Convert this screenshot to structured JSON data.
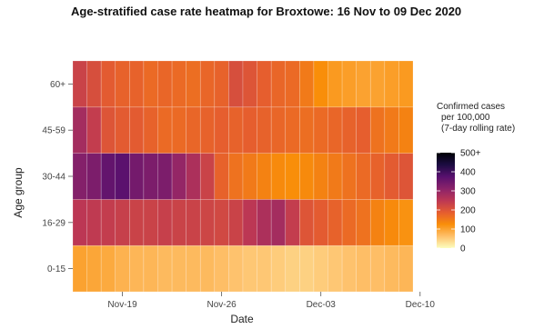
{
  "chart_data": {
    "type": "heatmap",
    "title": "Age-stratified case rate heatmap for Broxtowe: 16 Nov to 09 Dec 2020",
    "xlabel": "Date",
    "ylabel": "Age group",
    "x_ticks": [
      "Nov-19",
      "Nov-26",
      "Dec-03",
      "Dec-10"
    ],
    "dates": [
      "2020-11-16",
      "2020-11-17",
      "2020-11-18",
      "2020-11-19",
      "2020-11-20",
      "2020-11-21",
      "2020-11-22",
      "2020-11-23",
      "2020-11-24",
      "2020-11-25",
      "2020-11-26",
      "2020-11-27",
      "2020-11-28",
      "2020-11-29",
      "2020-11-30",
      "2020-12-01",
      "2020-12-02",
      "2020-12-03",
      "2020-12-04",
      "2020-12-05",
      "2020-12-06",
      "2020-12-07",
      "2020-12-08",
      "2020-12-09"
    ],
    "age_groups": [
      "0-15",
      "16-29",
      "30-44",
      "45-59",
      "60+"
    ],
    "values": {
      "60+": [
        230,
        210,
        190,
        180,
        180,
        170,
        175,
        170,
        165,
        175,
        180,
        210,
        200,
        185,
        175,
        170,
        150,
        125,
        110,
        105,
        100,
        100,
        105,
        110
      ],
      "45-59": [
        280,
        240,
        200,
        190,
        190,
        180,
        170,
        170,
        175,
        180,
        185,
        180,
        185,
        180,
        175,
        170,
        165,
        170,
        175,
        180,
        185,
        160,
        150,
        140
      ],
      "30-44": [
        320,
        330,
        360,
        370,
        340,
        330,
        330,
        300,
        270,
        230,
        180,
        160,
        150,
        140,
        130,
        125,
        130,
        140,
        150,
        160,
        170,
        180,
        190,
        200
      ],
      "16-29": [
        250,
        245,
        240,
        235,
        230,
        230,
        235,
        230,
        230,
        225,
        220,
        230,
        250,
        270,
        280,
        240,
        200,
        190,
        180,
        170,
        160,
        140,
        130,
        120
      ],
      "0-15": [
        100,
        95,
        90,
        80,
        75,
        75,
        70,
        70,
        70,
        70,
        65,
        60,
        55,
        55,
        50,
        45,
        45,
        50,
        55,
        60,
        65,
        65,
        70,
        75
      ]
    },
    "legend": {
      "title_lines": [
        "Confirmed cases",
        "per 100,000",
        "(7-day rolling rate)"
      ],
      "ticks": [
        "0",
        "100",
        "200",
        "300",
        "400",
        "500+"
      ],
      "range": [
        0,
        500
      ],
      "placement": "right"
    },
    "colors": [
      "#fcfdbf",
      "#fec06a",
      "#f98e09",
      "#e55c30",
      "#bc3754",
      "#8a226a",
      "#57106e",
      "#1b0c41",
      "#000004"
    ],
    "grid": true
  }
}
